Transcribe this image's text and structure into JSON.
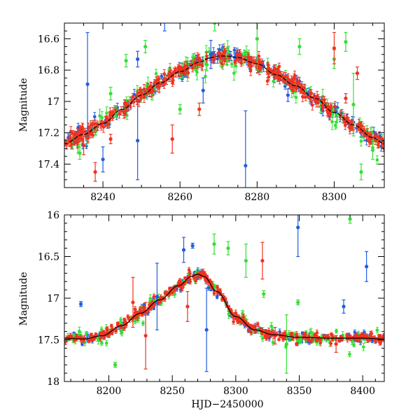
{
  "colors": {
    "blue": "#1f5fe0",
    "green": "#33e033",
    "red": "#f0321e",
    "model": "#000000"
  },
  "chart_data": [
    {
      "type": "scatter",
      "panel": "top",
      "xlabel": "",
      "ylabel": "Magnitude",
      "xlim": [
        8230,
        8313
      ],
      "ylim": [
        17.55,
        16.5
      ],
      "y_inverted": true,
      "xticks": [
        8240,
        8260,
        8280,
        8300
      ],
      "xtick_labels": [
        "8240",
        "8260",
        "8280",
        "8300"
      ],
      "yticks": [
        16.6,
        16.8,
        17.0,
        17.2,
        17.4
      ],
      "ytick_labels": [
        "16.6",
        "16.8",
        "17",
        "17.2",
        "17.4"
      ],
      "model_curve": {
        "x": [
          8230,
          8235,
          8240,
          8245,
          8250,
          8255,
          8260,
          8265,
          8268,
          8270,
          8272,
          8275,
          8280,
          8285,
          8290,
          8295,
          8300,
          8305,
          8310,
          8313
        ],
        "y": [
          17.27,
          17.21,
          17.14,
          17.05,
          16.96,
          16.88,
          16.81,
          16.75,
          16.72,
          16.71,
          16.71,
          16.72,
          16.76,
          16.83,
          16.9,
          16.98,
          17.07,
          17.15,
          17.23,
          17.27
        ]
      },
      "series": [
        {
          "color_key": "blue",
          "outliers": [
            {
              "x": 8236,
              "y": 16.89,
              "err": 0.33
            },
            {
              "x": 8240,
              "y": 17.37,
              "err": 0.08
            },
            {
              "x": 8249,
              "y": 17.25,
              "err": 0.25
            },
            {
              "x": 8249,
              "y": 16.73,
              "err": 0.05
            },
            {
              "x": 8256,
              "y": 16.45,
              "err": 0.1
            },
            {
              "x": 8266,
              "y": 16.93,
              "err": 0.08
            },
            {
              "x": 8268,
              "y": 16.7,
              "err": 0.09
            },
            {
              "x": 8277,
              "y": 17.41,
              "err": 0.35
            },
            {
              "x": 8288,
              "y": 16.96,
              "err": 0.04
            }
          ]
        },
        {
          "color_key": "green",
          "outliers": [
            {
              "x": 8234,
              "y": 17.33,
              "err": 0.04
            },
            {
              "x": 8242,
              "y": 16.95,
              "err": 0.04
            },
            {
              "x": 8246,
              "y": 16.74,
              "err": 0.04
            },
            {
              "x": 8251,
              "y": 16.65,
              "err": 0.04
            },
            {
              "x": 8260,
              "y": 17.05,
              "err": 0.03
            },
            {
              "x": 8269,
              "y": 16.5,
              "err": 0.05
            },
            {
              "x": 8280,
              "y": 16.6,
              "err": 0.2
            },
            {
              "x": 8291,
              "y": 16.65,
              "err": 0.05
            },
            {
              "x": 8300,
              "y": 16.73,
              "err": 0.06
            },
            {
              "x": 8303,
              "y": 16.62,
              "err": 0.06
            },
            {
              "x": 8305,
              "y": 17.02,
              "err": 0.2
            },
            {
              "x": 8307,
              "y": 17.45,
              "err": 0.05
            },
            {
              "x": 8310,
              "y": 17.31,
              "err": 0.06
            }
          ]
        },
        {
          "color_key": "red",
          "outliers": [
            {
              "x": 8235,
              "y": 17.28,
              "err": 0.06
            },
            {
              "x": 8238,
              "y": 17.45,
              "err": 0.06
            },
            {
              "x": 8242,
              "y": 17.24,
              "err": 0.03
            },
            {
              "x": 8258,
              "y": 17.24,
              "err": 0.09
            },
            {
              "x": 8265,
              "y": 17.05,
              "err": 0.04
            },
            {
              "x": 8300,
              "y": 16.66,
              "err": 0.1
            },
            {
              "x": 8303,
              "y": 16.98,
              "err": 0.03
            },
            {
              "x": 8306,
              "y": 16.82,
              "err": 0.04
            }
          ]
        }
      ]
    },
    {
      "type": "scatter",
      "panel": "bottom",
      "xlabel": "HJD−2450000",
      "ylabel": "Magnitude",
      "xlim": [
        8165,
        8417
      ],
      "ylim": [
        18.0,
        16.0
      ],
      "y_inverted": true,
      "xticks": [
        8200,
        8250,
        8300,
        8350,
        8400
      ],
      "xtick_labels": [
        "8200",
        "8250",
        "8300",
        "8350",
        "8400"
      ],
      "yticks": [
        16.0,
        16.5,
        17.0,
        17.5,
        18.0
      ],
      "ytick_labels": [
        "16",
        "16.5",
        "17",
        "17.5",
        "18"
      ],
      "model_curve": {
        "x": [
          8165,
          8180,
          8195,
          8210,
          8225,
          8240,
          8255,
          8265,
          8270,
          8275,
          8285,
          8300,
          8315,
          8330,
          8350,
          8375,
          8400,
          8417
        ],
        "y": [
          17.48,
          17.49,
          17.45,
          17.33,
          17.18,
          17.02,
          16.85,
          16.74,
          16.71,
          16.74,
          16.92,
          17.22,
          17.38,
          17.44,
          17.47,
          17.48,
          17.48,
          17.49
        ]
      },
      "series": [
        {
          "color_key": "blue",
          "outliers": [
            {
              "x": 8178,
              "y": 17.07,
              "err": 0.03
            },
            {
              "x": 8238,
              "y": 16.98,
              "err": 0.4
            },
            {
              "x": 8259,
              "y": 16.42,
              "err": 0.15
            },
            {
              "x": 8266,
              "y": 16.37,
              "err": 0.03
            },
            {
              "x": 8277,
              "y": 17.38,
              "err": 0.5
            },
            {
              "x": 8349,
              "y": 16.15,
              "err": 0.35
            },
            {
              "x": 8385,
              "y": 17.1,
              "err": 0.08
            },
            {
              "x": 8403,
              "y": 16.62,
              "err": 0.18
            }
          ]
        },
        {
          "color_key": "green",
          "outliers": [
            {
              "x": 8205,
              "y": 17.8,
              "err": 0.03
            },
            {
              "x": 8283,
              "y": 16.35,
              "err": 0.12
            },
            {
              "x": 8294,
              "y": 16.4,
              "err": 0.08
            },
            {
              "x": 8308,
              "y": 16.55,
              "err": 0.2
            },
            {
              "x": 8322,
              "y": 16.95,
              "err": 0.04
            },
            {
              "x": 8340,
              "y": 17.55,
              "err": 0.35
            },
            {
              "x": 8349,
              "y": 17.05,
              "err": 0.03
            },
            {
              "x": 8390,
              "y": 16.05,
              "err": 0.05
            }
          ]
        },
        {
          "color_key": "red",
          "outliers": [
            {
              "x": 8219,
              "y": 17.05,
              "err": 0.3
            },
            {
              "x": 8229,
              "y": 17.45,
              "err": 0.4
            },
            {
              "x": 8262,
              "y": 17.1,
              "err": 0.18
            },
            {
              "x": 8321,
              "y": 16.55,
              "err": 0.22
            },
            {
              "x": 8331,
              "y": 17.45,
              "err": 0.1
            },
            {
              "x": 8379,
              "y": 17.55,
              "err": 0.1
            }
          ]
        }
      ]
    }
  ]
}
